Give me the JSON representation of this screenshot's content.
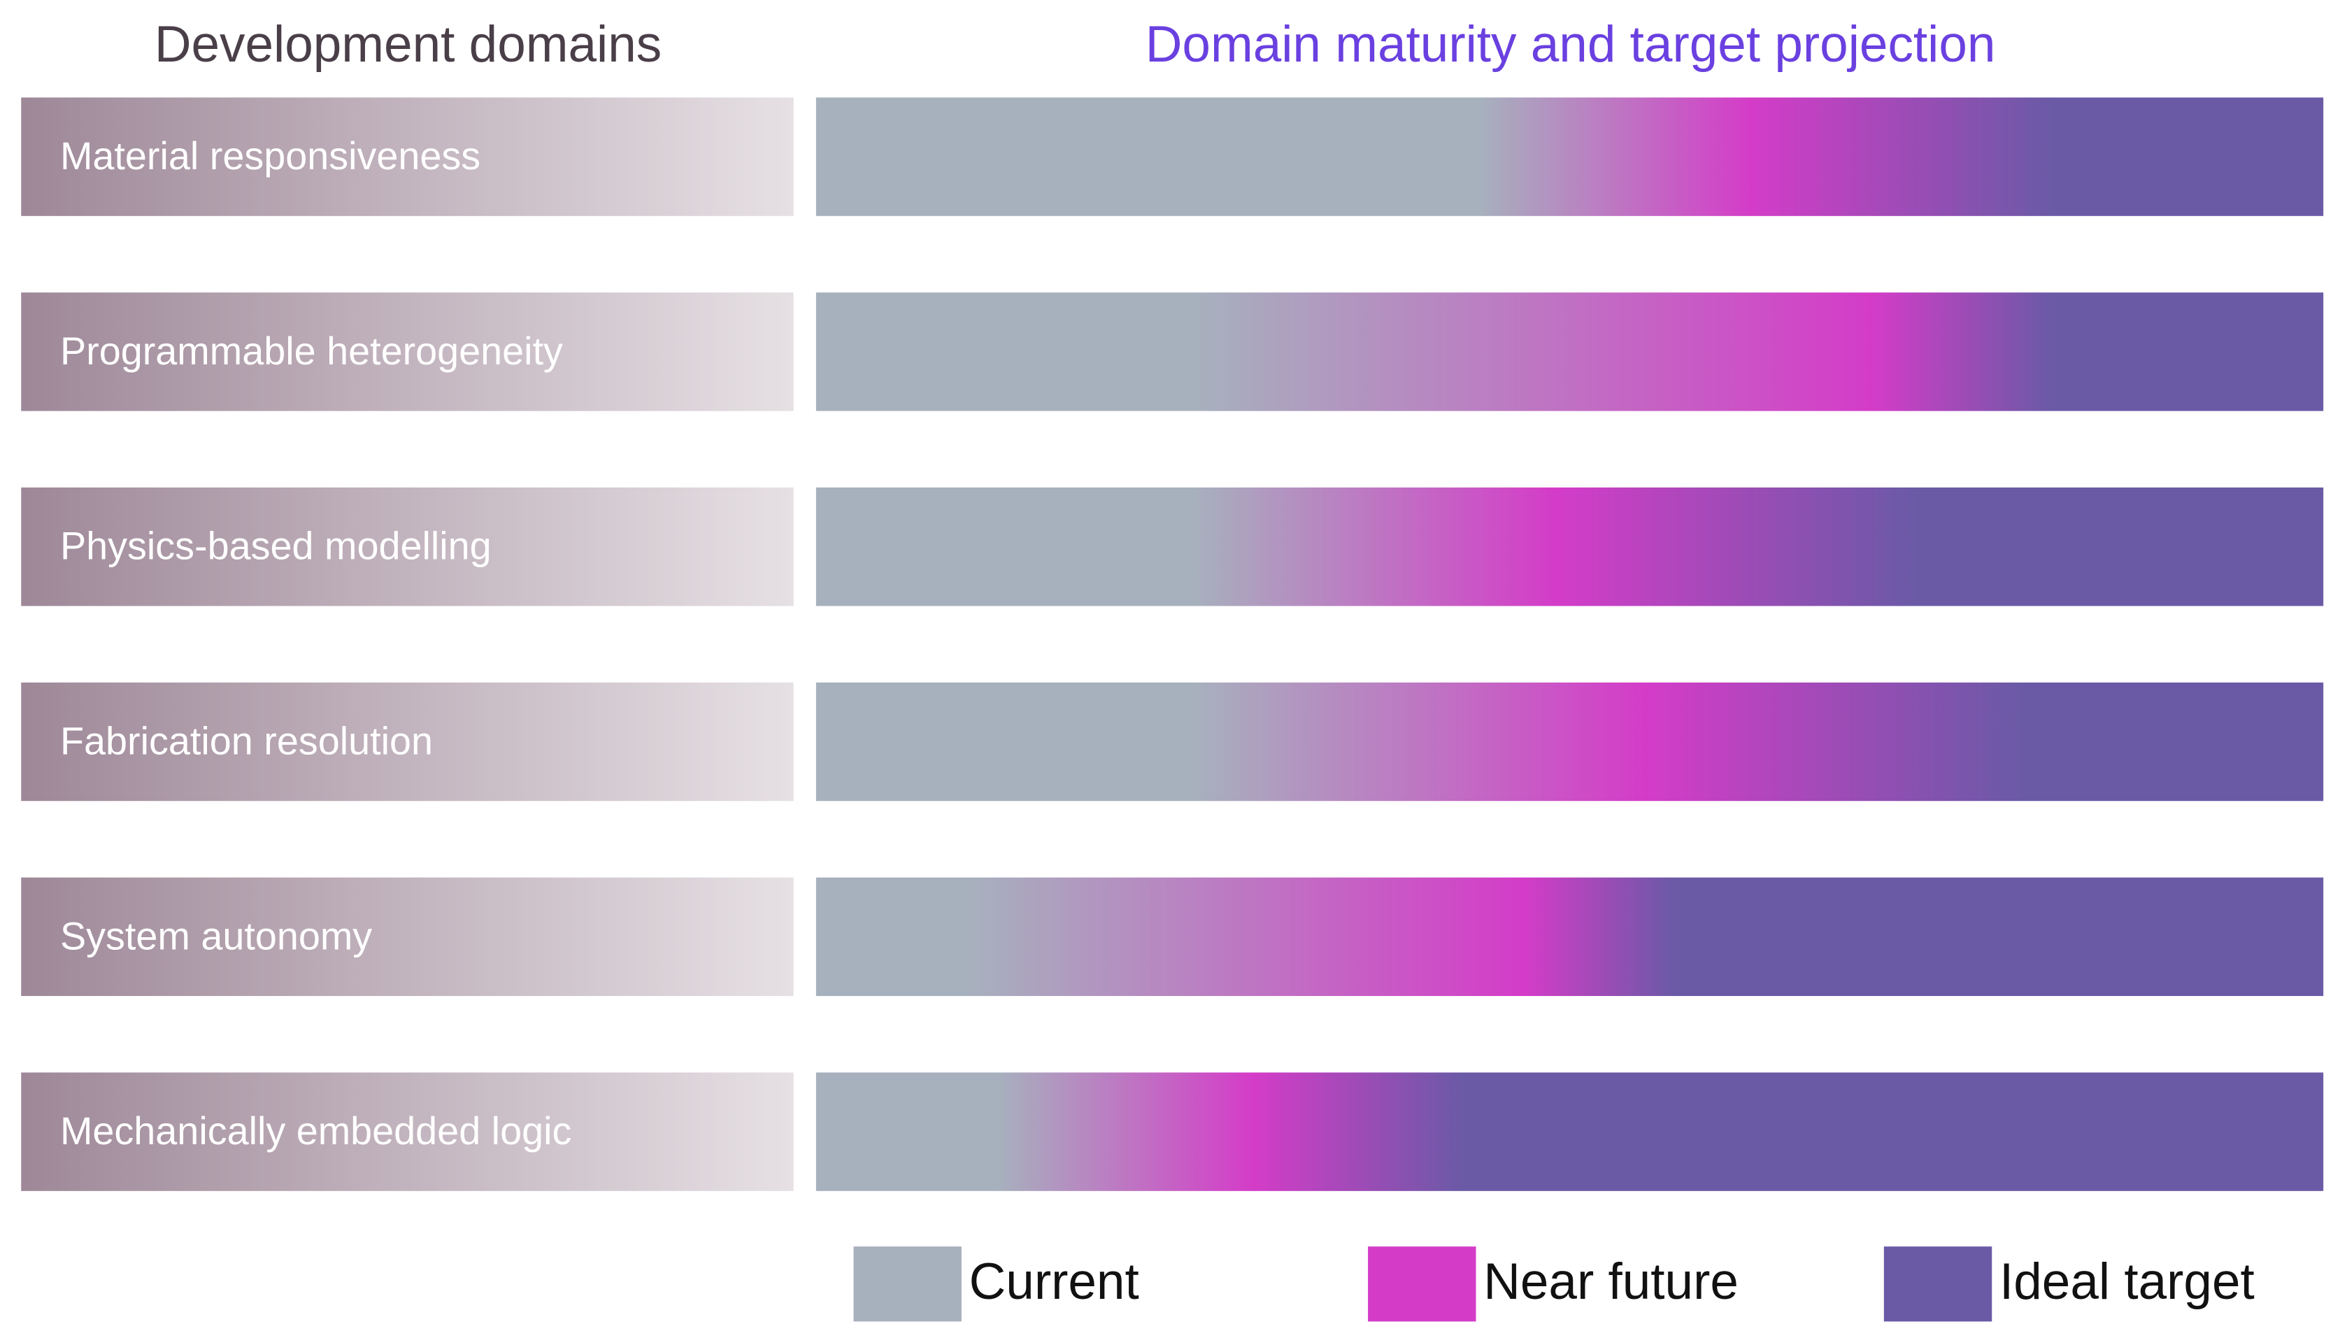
{
  "header": {
    "left_title": "Development domains",
    "right_title": "Domain maturity and target projection"
  },
  "rows": [
    "Material responsiveness",
    "Programmable heterogeneity",
    "Physics-based modelling",
    "Fabrication resolution",
    "System autonomy",
    "Mechanically embedded logic"
  ],
  "legend": [
    "Current",
    "Near future",
    "Ideal target"
  ]
}
